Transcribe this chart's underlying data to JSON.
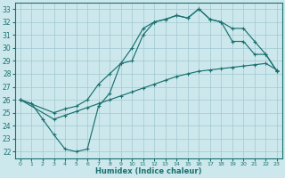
{
  "bg_color": "#cce8ec",
  "line_color": "#1a7070",
  "grid_color": "#a0c8d0",
  "xlabel": "Humidex (Indice chaleur)",
  "xlim": [
    -0.5,
    23.5
  ],
  "ylim": [
    21.5,
    33.5
  ],
  "xticks": [
    0,
    1,
    2,
    3,
    4,
    5,
    6,
    7,
    8,
    9,
    10,
    11,
    12,
    13,
    14,
    15,
    16,
    17,
    18,
    19,
    20,
    21,
    22,
    23
  ],
  "yticks": [
    22,
    23,
    24,
    25,
    26,
    27,
    28,
    29,
    30,
    31,
    32,
    33
  ],
  "line1": {
    "x": [
      0,
      1,
      2,
      3,
      4,
      5,
      6,
      7,
      8,
      9,
      10,
      11,
      12,
      13,
      14,
      15,
      16,
      17,
      18,
      19,
      20,
      21,
      22,
      23
    ],
    "y": [
      26.0,
      25.7,
      24.5,
      23.3,
      22.2,
      22.0,
      22.2,
      25.5,
      26.5,
      28.8,
      29.0,
      31.0,
      32.0,
      32.2,
      32.5,
      32.3,
      33.0,
      32.2,
      32.0,
      30.5,
      30.5,
      29.5,
      29.5,
      28.2
    ]
  },
  "line2": {
    "x": [
      0,
      3,
      4,
      5,
      6,
      7,
      8,
      9,
      10,
      11,
      12,
      13,
      14,
      15,
      16,
      17,
      18,
      19,
      20,
      21,
      22,
      23
    ],
    "y": [
      26.0,
      25.0,
      25.3,
      25.5,
      26.0,
      27.2,
      28.0,
      28.8,
      30.0,
      31.5,
      32.0,
      32.2,
      32.5,
      32.3,
      33.0,
      32.2,
      32.0,
      31.5,
      31.5,
      30.5,
      29.5,
      28.2
    ]
  },
  "line3": {
    "x": [
      0,
      3,
      4,
      5,
      6,
      7,
      8,
      9,
      10,
      11,
      12,
      13,
      14,
      15,
      16,
      17,
      18,
      19,
      20,
      21,
      22,
      23
    ],
    "y": [
      26.0,
      24.5,
      24.8,
      25.1,
      25.4,
      25.7,
      26.0,
      26.3,
      26.6,
      26.9,
      27.2,
      27.5,
      27.8,
      28.0,
      28.2,
      28.3,
      28.4,
      28.5,
      28.6,
      28.7,
      28.8,
      28.3
    ]
  }
}
